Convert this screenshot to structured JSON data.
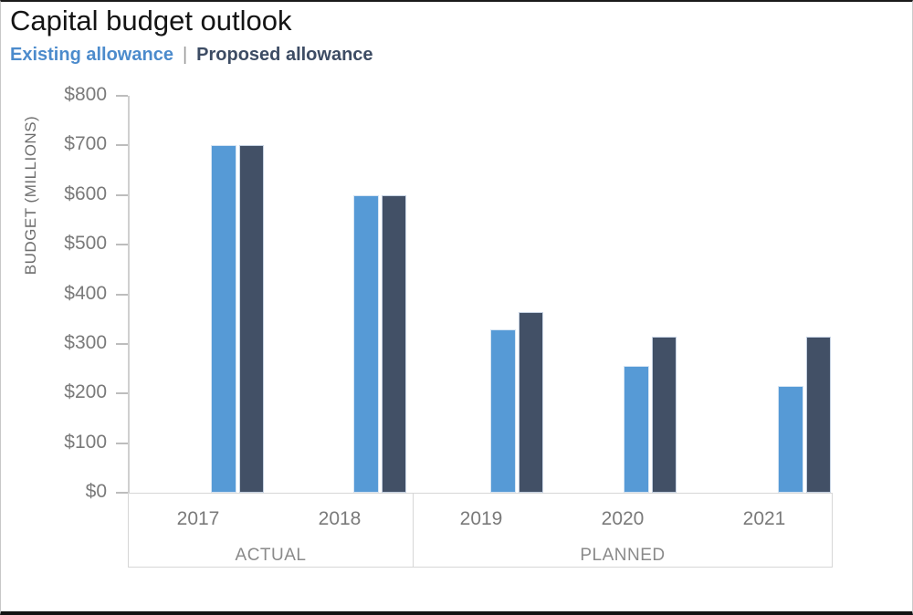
{
  "page": {
    "title": "Capital budget outlook"
  },
  "legend": {
    "separator": "|"
  },
  "colors": {
    "legend_existing_text": "#4c8bcc",
    "legend_proposed_text": "#3d4c64",
    "bar_existing": "#569ad6",
    "bar_proposed": "#425066",
    "axis_text": "#7a7a7a"
  },
  "chart_data": {
    "type": "bar",
    "title": "Capital budget outlook",
    "xlabel": "",
    "ylabel": "BUDGET (MILLIONS)",
    "ylim": [
      0,
      800
    ],
    "grid": false,
    "legend_position": "top-left",
    "ytick_values": [
      0,
      100,
      200,
      300,
      400,
      500,
      600,
      700,
      800
    ],
    "ytick_labels": [
      "$0",
      "$100",
      "$200",
      "$300",
      "$400",
      "$500",
      "$600",
      "$700",
      "$800"
    ],
    "categories": [
      "2017",
      "2018",
      "2019",
      "2020",
      "2021"
    ],
    "series": [
      {
        "name": "Existing allowance",
        "color": "#569ad6",
        "values": [
          700,
          600,
          330,
          255,
          215
        ]
      },
      {
        "name": "Proposed allowance",
        "color": "#425066",
        "values": [
          700,
          600,
          365,
          315,
          315
        ]
      }
    ],
    "groups": [
      {
        "label": "ACTUAL",
        "categories": [
          "2017",
          "2018"
        ]
      },
      {
        "label": "PLANNED",
        "categories": [
          "2019",
          "2020",
          "2021"
        ]
      }
    ]
  }
}
